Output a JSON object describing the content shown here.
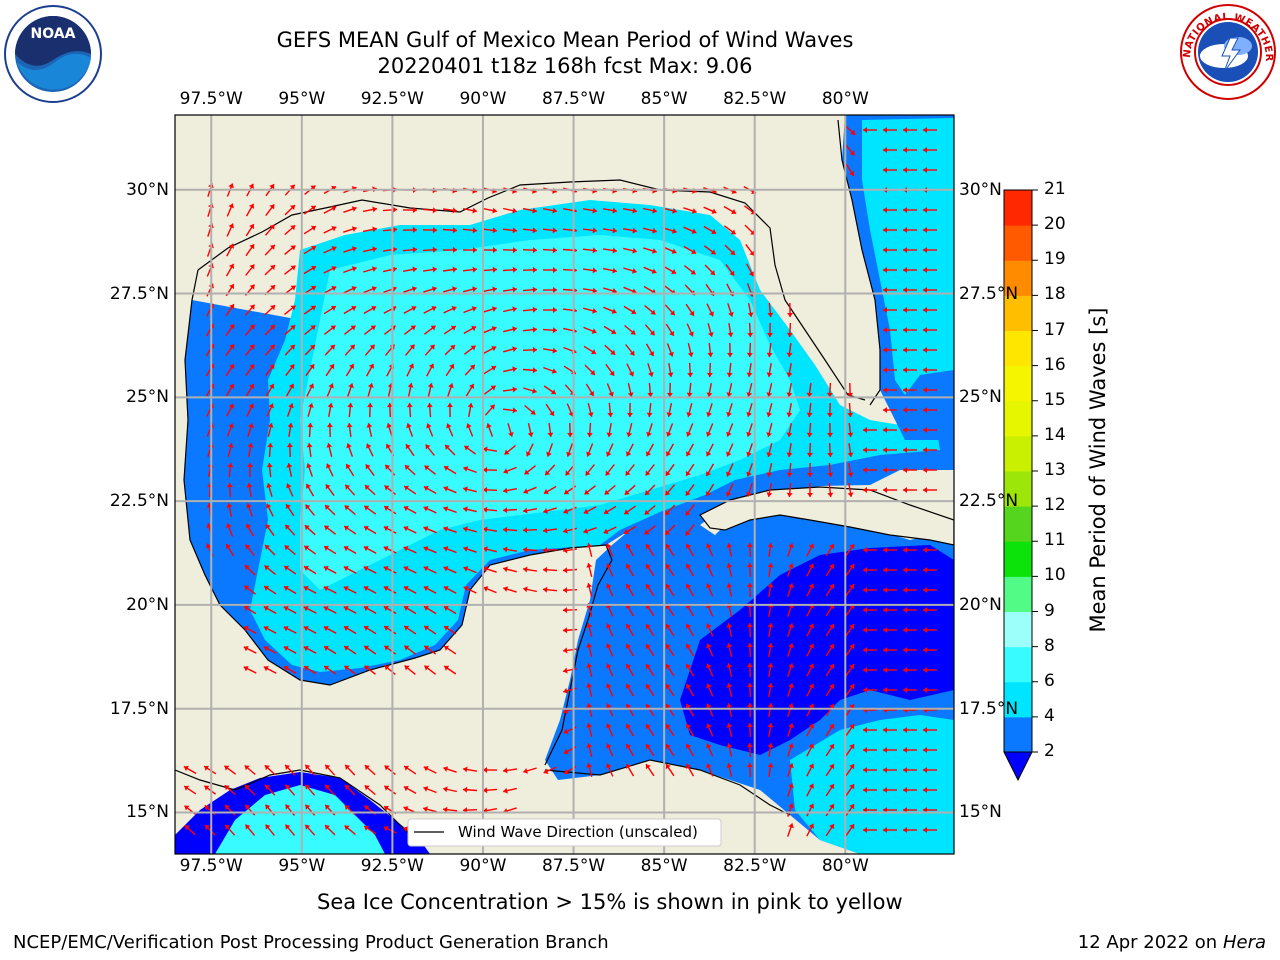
{
  "title": {
    "line1": "GEFS MEAN Gulf of Mexico Mean Period of Wind Waves",
    "line2": "20220401 t18z 168h fcst   Max: 9.06"
  },
  "map": {
    "lon_range": [
      -98.5,
      -77
    ],
    "lat_range": [
      14,
      31.8
    ],
    "lon_ticks": [
      {
        "value": -97.5,
        "label": "97.5°W"
      },
      {
        "value": -95,
        "label": "95°W"
      },
      {
        "value": -92.5,
        "label": "92.5°W"
      },
      {
        "value": -90,
        "label": "90°W"
      },
      {
        "value": -87.5,
        "label": "87.5°W"
      },
      {
        "value": -85,
        "label": "85°W"
      },
      {
        "value": -82.5,
        "label": "82.5°W"
      },
      {
        "value": -80,
        "label": "80°W"
      }
    ],
    "lat_ticks": [
      {
        "value": 30,
        "label": "30°N"
      },
      {
        "value": 27.5,
        "label": "27.5°N"
      },
      {
        "value": 25,
        "label": "25°N"
      },
      {
        "value": 22.5,
        "label": "22.5°N"
      },
      {
        "value": 20,
        "label": "20°N"
      },
      {
        "value": 17.5,
        "label": "17.5°N"
      },
      {
        "value": 15,
        "label": "15°N"
      }
    ],
    "land_color": "#efeddb",
    "vector_color": "#ff0000",
    "legend_label": "Wind Wave Direction (unscaled)"
  },
  "colorbar": {
    "label": "Mean Period of Wind Waves [s]",
    "levels": [
      2,
      4,
      6,
      8,
      9,
      10,
      11,
      12,
      13,
      14,
      15,
      16,
      17,
      18,
      19,
      20,
      21
    ],
    "colors": [
      "#0a78ff",
      "#00e5ff",
      "#38fbff",
      "#9dfff9",
      "#52fa86",
      "#0be30b",
      "#56d51e",
      "#9de60a",
      "#c8f000",
      "#e6f500",
      "#f5f500",
      "#ffe600",
      "#ffbe00",
      "#ff8c00",
      "#ff5a00",
      "#ff2800"
    ],
    "under_color": "#0000ff"
  },
  "caption": "Sea Ice Concentration > 15% is shown in pink to yellow",
  "footer": {
    "left": "NCEP/EMC/Verification Post Processing Product Generation Branch",
    "right_date": "12 Apr 2022 on ",
    "right_host": "Hera"
  },
  "logos": {
    "noaa_text": "NOAA",
    "nws_text": "NATIONAL WEATHER SERVICE"
  }
}
